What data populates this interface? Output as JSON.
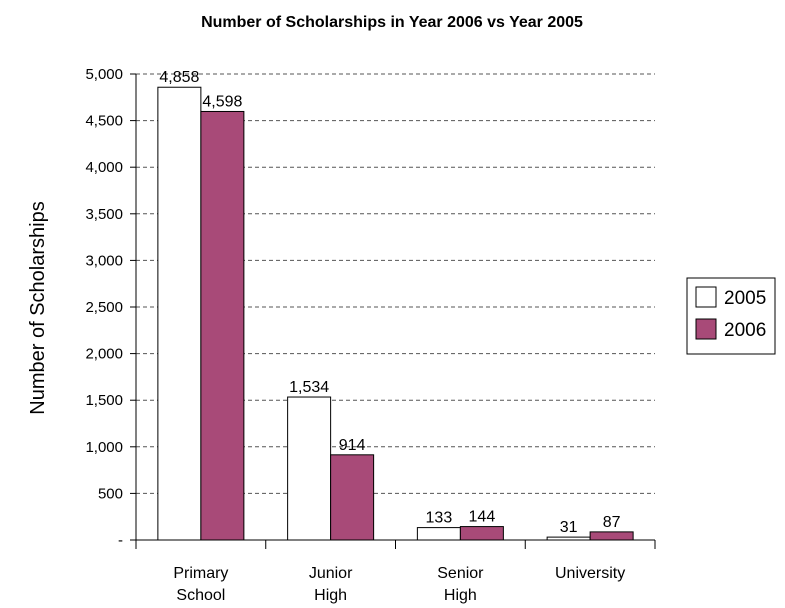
{
  "chart_data": {
    "type": "bar",
    "title": "Number of Scholarships in Year 2006 vs Year 2005",
    "xlabel": "",
    "ylabel": "Number of Scholarships",
    "categories": [
      [
        "Primary",
        "School"
      ],
      [
        "Junior",
        "High"
      ],
      [
        "Senior",
        "High"
      ],
      [
        "University"
      ]
    ],
    "series": [
      {
        "name": "2005",
        "values": [
          4858,
          1534,
          133,
          31
        ],
        "labels": [
          "4,858",
          "1,534",
          "133",
          "31"
        ],
        "color": "#ffffff"
      },
      {
        "name": "2006",
        "values": [
          4598,
          914,
          144,
          87
        ],
        "labels": [
          "4,598",
          "914",
          "144",
          "87"
        ],
        "color": "#a84a78"
      }
    ],
    "ylim": [
      0,
      5000
    ],
    "yticks": [
      0,
      500,
      1000,
      1500,
      2000,
      2500,
      3000,
      3500,
      4000,
      4500,
      5000
    ],
    "ytick_labels": [
      "-",
      "500",
      "1,000",
      "1,500",
      "2,000",
      "2,500",
      "3,000",
      "3,500",
      "4,000",
      "4,500",
      "5,000"
    ],
    "grid": "horizontal dashed",
    "legend_position": "right"
  }
}
